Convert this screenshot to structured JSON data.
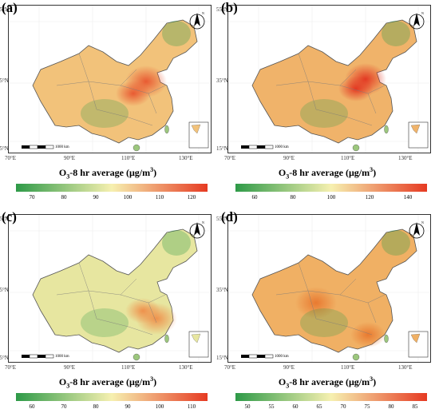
{
  "panels": [
    {
      "tag": "(a)",
      "ticks": [
        "70",
        "80",
        "90",
        "100",
        "110",
        "120"
      ],
      "lowColor": "#2e9a48",
      "midColor": "#f6f0b0",
      "highColor": "#e63a22",
      "mapTint": "#f2c27a",
      "hotspot": "#e8552e"
    },
    {
      "tag": "(b)",
      "ticks": [
        "60",
        "80",
        "100",
        "120",
        "140"
      ],
      "lowColor": "#2e9a48",
      "midColor": "#f6f0b0",
      "highColor": "#e63a22",
      "mapTint": "#f0b36a",
      "hotspot": "#e2331f"
    },
    {
      "tag": "(c)",
      "ticks": [
        "60",
        "70",
        "80",
        "90",
        "100",
        "110"
      ],
      "lowColor": "#2e9a48",
      "midColor": "#f6f0b0",
      "highColor": "#e63a22",
      "mapTint": "#e7e6a0",
      "hotspot": "#ef8d48"
    },
    {
      "tag": "(d)",
      "ticks": [
        "50",
        "55",
        "60",
        "65",
        "70",
        "75",
        "80",
        "85"
      ],
      "lowColor": "#2e9a48",
      "midColor": "#f6f0b0",
      "highColor": "#e63a22",
      "mapTint": "#f0b064",
      "hotspot": "#e8772e"
    }
  ],
  "lat_labels": {
    "top": "55°N",
    "mid": "35°N",
    "bot": "15°N"
  },
  "lon_labels": [
    "70°E",
    "90°E",
    "110°E",
    "130°E"
  ],
  "scale_label": "1000 km",
  "north_label": "N",
  "colorbar_title": {
    "prefix": "O",
    "sub": "3",
    "middle": "-8 hr average (",
    "unit": "μg/m",
    "sup": "3",
    "suffix": ")"
  }
}
